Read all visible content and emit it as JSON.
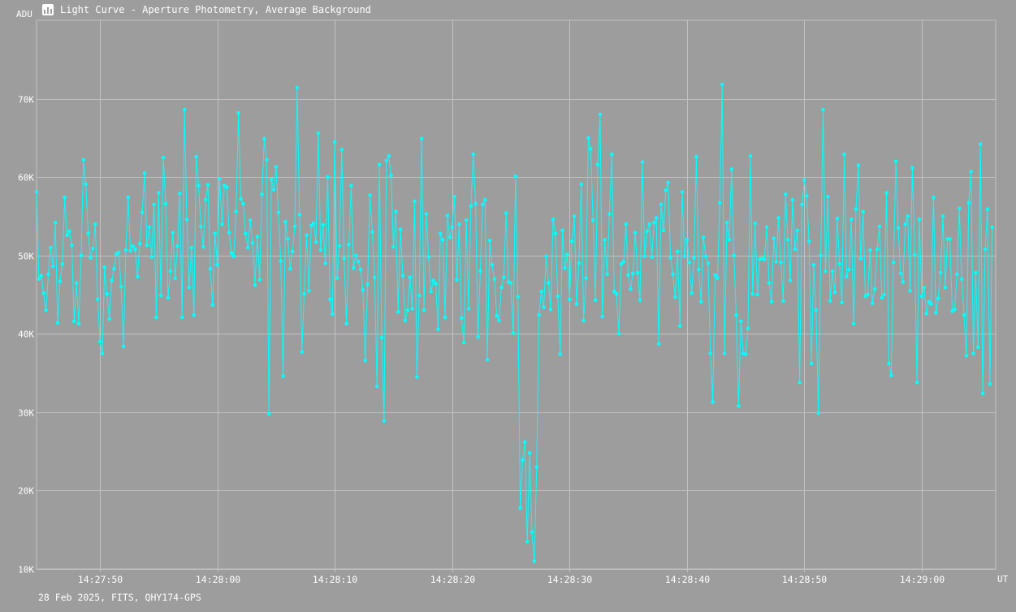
{
  "title": "Light Curve - Aperture Photometry, Average Background",
  "footer": "28 Feb 2025, FITS, QHY174-GPS",
  "icon": "light-curve-app-icon",
  "colors": {
    "background": "#9d9d9d",
    "grid": "#c2c2c2",
    "series": "#00ffff",
    "text": "#ffffff"
  },
  "chart_data": {
    "type": "line",
    "ylabel": "ADU",
    "xlabel": "UT",
    "ylim": [
      10000,
      80000
    ],
    "xlim": [
      "14:27:44.6",
      "14:29:06.3"
    ],
    "y_ticks": [
      {
        "value": 10000,
        "label": "10K"
      },
      {
        "value": 20000,
        "label": "20K"
      },
      {
        "value": 30000,
        "label": "30K"
      },
      {
        "value": 40000,
        "label": "40K"
      },
      {
        "value": 50000,
        "label": "50K"
      },
      {
        "value": 60000,
        "label": "60K"
      },
      {
        "value": 70000,
        "label": "70K"
      }
    ],
    "x_ticks": [
      "14:27:50",
      "14:28:00",
      "14:28:10",
      "14:28:20",
      "14:28:30",
      "14:28:40",
      "14:28:50",
      "14:29:00"
    ],
    "grid": true,
    "markers": true,
    "series": [
      {
        "x_start": "14:27:44.6",
        "interval_s": 0.2,
        "values": [
          58100,
          47000,
          47400,
          45200,
          43000,
          47600,
          51000,
          48600,
          54200,
          41400,
          46700,
          48900,
          57400,
          52600,
          53100,
          51300,
          41600,
          46500,
          41300,
          50000,
          62200,
          59100,
          52800,
          49700,
          50900,
          54000,
          44400,
          39000,
          37500,
          48500,
          45100,
          41900,
          46800,
          48300,
          50200,
          50400,
          46000,
          38400,
          50700,
          57400,
          50600,
          51200,
          50800,
          47300,
          51500,
          55500,
          60500,
          51300,
          53600,
          49800,
          56500,
          42100,
          58000,
          44900,
          62500,
          56600,
          44600,
          48000,
          52900,
          47100,
          51200,
          57900,
          42100,
          68600,
          54600,
          45900,
          51000,
          42400,
          62600,
          58900,
          53700,
          51100,
          57100,
          59000,
          48300,
          43700,
          52800,
          48800,
          59800,
          54000,
          58900,
          58700,
          52900,
          50300,
          49900,
          55600,
          68200,
          57200,
          56600,
          52800,
          51000,
          54500,
          51600,
          46200,
          52400,
          46900,
          57800,
          64900,
          62200,
          29800,
          59700,
          58400,
          61300,
          55500,
          49300,
          34600,
          54300,
          52100,
          48300,
          50500,
          53700,
          71400,
          55200,
          37700,
          45100,
          52600,
          45500,
          53800,
          54100,
          51700,
          65600,
          50700,
          53900,
          49000,
          60000,
          44400,
          42500,
          64500,
          47100,
          51200,
          63500,
          49600,
          41300,
          51400,
          58900,
          48400,
          50000,
          49200,
          48200,
          45600,
          36600,
          46300,
          57700,
          53000,
          47200,
          33300,
          61600,
          39500,
          28900,
          62100,
          62700,
          60200,
          51100,
          55600,
          42800,
          53300,
          47400,
          41700,
          43000,
          47200,
          43200,
          56900,
          34500,
          44900,
          64900,
          43000,
          55300,
          49800,
          45400,
          46800,
          46400,
          40600,
          52800,
          52000,
          42100,
          55100,
          52300,
          53600,
          57500,
          46900,
          54000,
          42000,
          38900,
          54500,
          43200,
          56300,
          62900,
          56600,
          39600,
          48000,
          56500,
          57100,
          36700,
          51900,
          48800,
          47000,
          42300,
          41700,
          45900,
          47200,
          55400,
          46600,
          46500,
          40100,
          60100,
          44700,
          17800,
          23900,
          26200,
          13500,
          24800,
          14700,
          11000,
          23000,
          42400,
          45400,
          43400,
          49900,
          46500,
          43100,
          54600,
          52800,
          44800,
          37400,
          53200,
          48400,
          50100,
          44400,
          51800,
          55000,
          43800,
          49000,
          59100,
          41700,
          47100,
          65000,
          63600,
          54500,
          44300,
          61600,
          68000,
          42200,
          52000,
          47600,
          55300,
          62900,
          45400,
          45100,
          40000,
          48900,
          49200,
          54000,
          47500,
          45700,
          47700,
          52900,
          47800,
          44300,
          61900,
          49900,
          53100,
          54000,
          49800,
          54200,
          54800,
          38700,
          56500,
          53200,
          58300,
          59300,
          49700,
          47600,
          44700,
          50500,
          41000,
          58100,
          49900,
          52000,
          49100,
          45200,
          49700,
          62600,
          48200,
          44100,
          52300,
          49900,
          49000,
          37500,
          31300,
          47500,
          47100,
          56700,
          71800,
          37500,
          54200,
          52000,
          61000,
          50000,
          42400,
          30800,
          41600,
          37500,
          37400,
          40700,
          62700,
          45100,
          54100,
          45000,
          49500,
          49600,
          49500,
          53600,
          46500,
          44100,
          52200,
          49200,
          54800,
          49100,
          44200,
          57800,
          52000,
          46800,
          57100,
          50800,
          53200,
          33800,
          56500,
          59600,
          57600,
          51800,
          36200,
          48800,
          43000,
          29900,
          50000,
          68600,
          48000,
          57500,
          44200,
          48000,
          45300,
          54700,
          48900,
          44000,
          62900,
          47300,
          48200,
          54600,
          41300,
          55900,
          61500,
          49600,
          55600,
          44800,
          45000,
          50700,
          43900,
          45700,
          50800,
          53700,
          44600,
          45000,
          58000,
          36200,
          34700,
          49100,
          62000,
          53500,
          47700,
          46600,
          54000,
          55000,
          45500,
          61200,
          50100,
          33800,
          54600,
          44800,
          45900,
          42600,
          44100,
          43800,
          57400,
          42700,
          44500,
          47800,
          55000,
          45900,
          52100,
          52100,
          42900,
          43100,
          47600,
          56000,
          47000,
          42400,
          37200,
          56700,
          60700,
          37500,
          47800,
          38300,
          64200,
          32400,
          50800,
          55900,
          33600,
          53600
        ]
      }
    ]
  }
}
